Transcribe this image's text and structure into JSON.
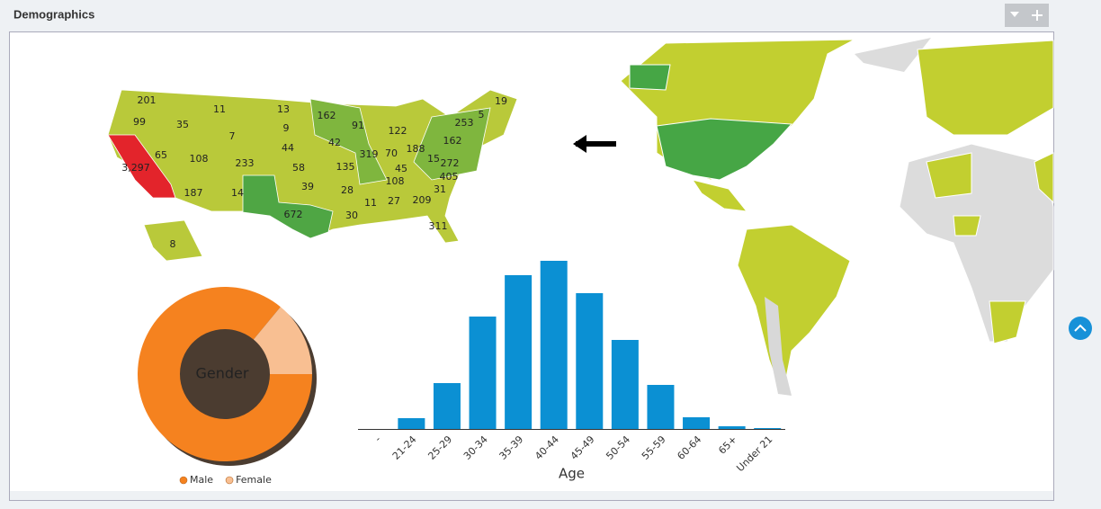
{
  "header": {
    "title": "Demographics"
  },
  "us_map": {
    "labels": [
      "201",
      "99",
      "11",
      "13",
      "35",
      "162",
      "91",
      "19",
      "5",
      "253",
      "122",
      "9",
      "7",
      "42",
      "162",
      "65",
      "108",
      "44",
      "319",
      "70",
      "188",
      "15",
      "272",
      "3,297",
      "233",
      "58",
      "135",
      "45",
      "405",
      "108",
      "39",
      "28",
      "31",
      "187",
      "14",
      "209",
      "11",
      "27",
      "672",
      "30",
      "311",
      "8"
    ]
  },
  "chart_data": [
    {
      "type": "pie",
      "title": "Gender",
      "categories": [
        "Male",
        "Female"
      ],
      "values": [
        86,
        14
      ],
      "colors": [
        "#f5821f",
        "#f8bf92"
      ],
      "legend": "bottom"
    },
    {
      "type": "bar",
      "x_label": "Age",
      "categories": [
        "-",
        "21-24",
        "25-29",
        "30-34",
        "35-39",
        "40-44",
        "45-49",
        "50-54",
        "55-59",
        "60-64",
        "65+",
        "Under 21"
      ],
      "values": [
        0,
        12,
        51,
        125,
        171,
        187,
        151,
        99,
        49,
        13,
        3,
        1
      ],
      "color": "#0b90d3"
    }
  ]
}
